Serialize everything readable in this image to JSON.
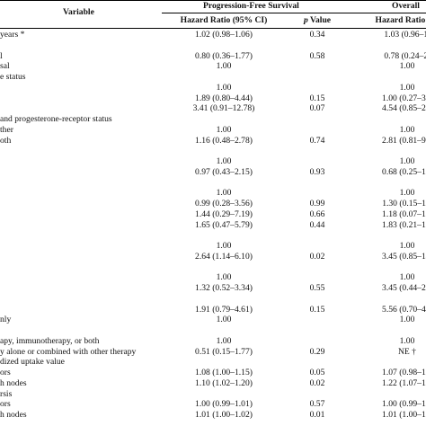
{
  "header": {
    "variable": "Variable",
    "pfs_group": "Progression-Free Survival",
    "os_group": "Overall",
    "hr_ci": "Hazard Ratio (95% CI)",
    "p_value_p": "p",
    "p_value_rest": " Value",
    "os_hr_ci": "Hazard Ratio (95"
  },
  "rows": [
    {
      "label": "years *",
      "hr": "1.02 (0.98–1.06)",
      "p": "0.34",
      "os": "1.03 (0.96–1."
    },
    {
      "label": "",
      "hr": "",
      "p": "",
      "os": ""
    },
    {
      "label": "l",
      "hr": "0.80 (0.36–1.77)",
      "p": "0.58",
      "os": "0.78 (0.24–2."
    },
    {
      "label": "sal",
      "hr": "1.00",
      "p": "",
      "os": "1.00"
    },
    {
      "label": "e status",
      "hr": "",
      "p": "",
      "os": ""
    },
    {
      "label": "",
      "hr": "1.00",
      "p": "",
      "os": "1.00"
    },
    {
      "label": "",
      "hr": "1.89 (0.80–4.44)",
      "p": "0.15",
      "os": "1.00 (0.27–3.7"
    },
    {
      "label": "",
      "hr": "3.41 (0.91–12.78)",
      "p": "0.07",
      "os": "4.54 (0.85–24."
    },
    {
      "label": "and progesterone-receptor status",
      "hr": "",
      "p": "",
      "os": ""
    },
    {
      "label": "ther",
      "hr": "1.00",
      "p": "",
      "os": "1.00"
    },
    {
      "label": "oth",
      "hr": "1.16 (0.48–2.78)",
      "p": "0.74",
      "os": "2.81 (0.81–9.7"
    },
    {
      "label": "",
      "hr": "",
      "p": "",
      "os": ""
    },
    {
      "label": "",
      "hr": "1.00",
      "p": "",
      "os": "1.00"
    },
    {
      "label": "",
      "hr": "0.97 (0.43–2.15)",
      "p": "0.93",
      "os": "0.68 (0.25–1.8"
    },
    {
      "label": "",
      "hr": "",
      "p": "",
      "os": ""
    },
    {
      "label": "",
      "hr": "1.00",
      "p": "",
      "os": "1.00"
    },
    {
      "label": "",
      "hr": "0.99 (0.28–3.56)",
      "p": "0.99",
      "os": "1.30 (0.15–11."
    },
    {
      "label": "",
      "hr": "1.44 (0.29–7.19)",
      "p": "0.66",
      "os": "1.18 (0.07–18."
    },
    {
      "label": "",
      "hr": "1.65 (0.47–5.79)",
      "p": "0.44",
      "os": "1.83 (0.21–15."
    },
    {
      "label": "",
      "hr": "",
      "p": "",
      "os": ""
    },
    {
      "label": "",
      "hr": "1.00",
      "p": "",
      "os": "1.00"
    },
    {
      "label": "",
      "hr": "2.64 (1.14–6.10)",
      "p": "0.02",
      "os": "3.45 (0.85–14."
    },
    {
      "label": "",
      "hr": "",
      "p": "",
      "os": ""
    },
    {
      "label": "",
      "hr": "1.00",
      "p": "",
      "os": "1.00"
    },
    {
      "label": "",
      "hr": "1.32 (0.52–3.34)",
      "p": "0.55",
      "os": "3.45 (0.44–27."
    },
    {
      "label": "",
      "hr": "",
      "p": "",
      "os": ""
    },
    {
      "label": "",
      "hr": "1.91 (0.79–4.61)",
      "p": "0.15",
      "os": "5.56 (0.70–44."
    },
    {
      "label": "nly",
      "hr": "1.00",
      "p": "",
      "os": "1.00"
    },
    {
      "label": "",
      "hr": "",
      "p": "",
      "os": ""
    },
    {
      "label": "apy, immunotherapy, or both",
      "hr": "1.00",
      "p": "",
      "os": "1.00"
    },
    {
      "label": "y alone or combined with other therapy",
      "hr": "0.51 (0.15–1.77)",
      "p": "0.29",
      "os": "NE †"
    },
    {
      "label": "dized uptake value",
      "hr": "",
      "p": "",
      "os": ""
    },
    {
      "label": "ors",
      "hr": "1.08 (1.00–1.15)",
      "p": "0.05",
      "os": "1.07 (0.98–1.1"
    },
    {
      "label": "h nodes",
      "hr": "1.10 (1.02–1.20)",
      "p": "0.02",
      "os": "1.22 (1.07–1.4"
    },
    {
      "label": "rsis",
      "hr": "",
      "p": "",
      "os": ""
    },
    {
      "label": "ors",
      "hr": "1.00 (0.99–1.01)",
      "p": "0.57",
      "os": "1.00 (0.99–1.0"
    },
    {
      "label": "h nodes",
      "hr": "1.01 (1.00–1.02)",
      "p": "0.01",
      "os": "1.01 (1.00–1.0"
    }
  ]
}
